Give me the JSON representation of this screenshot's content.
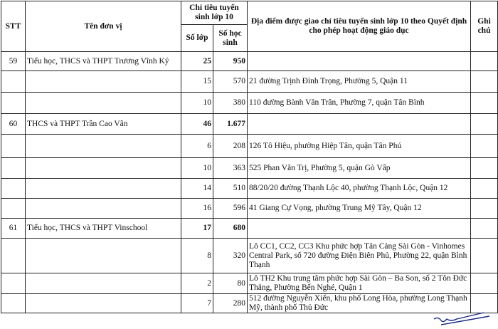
{
  "header": {
    "stt": "STT",
    "name": "Tên đơn vị",
    "quota": "Chỉ tiêu tuyển sinh lớp 10",
    "classes": "Số lớp",
    "students": "Số học sinh",
    "location": "Địa điểm được giao chỉ tiêu tuyển sinh lớp 10 theo Quyết định cho phép hoạt động giáo dục",
    "note": "Ghi chú"
  },
  "rows": [
    {
      "stt": "59",
      "name": "Tiểu học, THCS và THPT Trương Vĩnh Ký",
      "classes": "25",
      "students": "950",
      "location": "",
      "note": "",
      "total": true
    },
    {
      "stt": "",
      "name": "",
      "classes": "15",
      "students": "570",
      "location": "21 đường Trịnh Đình Trọng, Phường 5, Quận 11",
      "note": ""
    },
    {
      "stt": "",
      "name": "",
      "classes": "10",
      "students": "380",
      "location": "110 đường Bành Văn Trân, Phường 7, quận Tân Bình",
      "note": ""
    },
    {
      "stt": "60",
      "name": "THCS và THPT Trần Cao Vân",
      "classes": "46",
      "students": "1.677",
      "location": "",
      "note": "",
      "total": true
    },
    {
      "stt": "",
      "name": "",
      "classes": "6",
      "students": "208",
      "location": "126 Tô Hiệu, phường Hiệp Tân, quận Tân Phú",
      "note": ""
    },
    {
      "stt": "",
      "name": "",
      "classes": "10",
      "students": "363",
      "location": "525 Phan Văn Trị, Phường 5, quận Gò Vấp",
      "note": ""
    },
    {
      "stt": "",
      "name": "",
      "classes": "14",
      "students": "510",
      "location": "88/20/20 đường Thạnh Lộc 40, phường Thạnh Lộc, Quận 12",
      "note": ""
    },
    {
      "stt": "",
      "name": "",
      "classes": "16",
      "students": "596",
      "location": "41 Giang Cự Vọng, phường Trung Mỹ Tây, Quận 12",
      "note": ""
    },
    {
      "stt": "61",
      "name": "Tiểu học, THCS và THPT Vinschool",
      "classes": "17",
      "students": "680",
      "location": "",
      "note": "",
      "total": true
    },
    {
      "stt": "",
      "name": "",
      "classes": "8",
      "students": "320",
      "location": "Lô CC1, CC2, CC3 Khu phức hợp Tân Cảng Sài Gòn - Vinhomes Central Park, số 720 đường Điện Biên Phủ, Phường 22, quận Bình Thạnh",
      "note": ""
    },
    {
      "stt": "",
      "name": "",
      "classes": "2",
      "students": "80",
      "location": "Lô TH2 Khu trung tâm phức hợp Sài Gòn – Ba Son, số 2 Tôn Đức Thắng, Phường Bến Nghé, Quận 1",
      "note": ""
    },
    {
      "stt": "",
      "name": "",
      "classes": "7",
      "students": "280",
      "location": "512 đường Nguyễn Xiển, khu phố Long Hòa, phường Long Thạnh Mỹ, thành phố Thủ Đức",
      "note": ""
    }
  ],
  "signature": {
    "ink_color": "#1a2a8a"
  }
}
